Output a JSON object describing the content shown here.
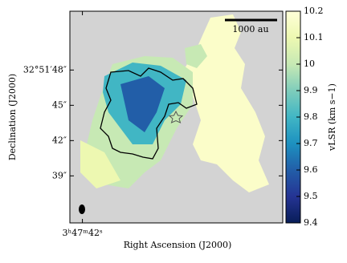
{
  "chart_data": {
    "type": "heatmap",
    "x_label": "Right Ascension (J2000)",
    "y_label": "Declination (J2000)",
    "colorbar_label": "vLSR (km s−1)",
    "scale_bar_label": "1000 au",
    "xlim": [
      42.05,
      41.2
    ],
    "xticks": [
      {
        "value": 42,
        "label": "3ʰ47ᵐ42ˢ"
      }
    ],
    "ylim": [
      35.0,
      53.0
    ],
    "yticks": [
      {
        "value": 48,
        "label": "32°51′48″"
      },
      {
        "value": 45,
        "label": "45″"
      },
      {
        "value": 42,
        "label": "42″"
      },
      {
        "value": 39,
        "label": "39″"
      }
    ],
    "clim": [
      9.4,
      10.2
    ],
    "cticks": [
      9.4,
      9.5,
      9.6,
      9.7,
      9.8,
      9.9,
      10.0,
      10.1,
      10.2
    ],
    "colormap": [
      "#081d58",
      "#253494",
      "#225ea8",
      "#1d91c0",
      "#41b6c4",
      "#7fcdbb",
      "#c7e9b4",
      "#edf8b1",
      "#ffffd9"
    ],
    "background": "#d3d3d3"
  }
}
